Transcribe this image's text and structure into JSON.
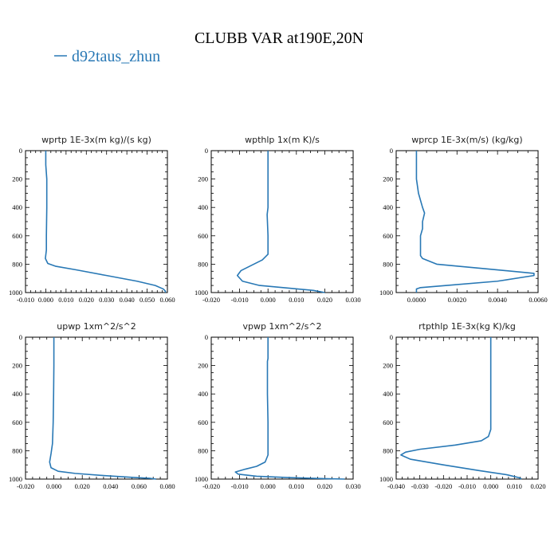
{
  "figure": {
    "title": "CLUBB VAR at190E,20N",
    "legend": {
      "label": "d92taus_zhun",
      "color": "#2878b5"
    }
  },
  "chart_data": [
    {
      "type": "line",
      "title": "wprtp  1E-3x(m kg)/(s kg)",
      "xlim": [
        -0.01,
        0.06
      ],
      "xticks": [
        -0.01,
        0.0,
        0.01,
        0.02,
        0.03,
        0.04,
        0.05,
        0.06
      ],
      "xtick_labels": [
        "-0.010",
        "0.000",
        "0.010",
        "0.020",
        "0.030",
        "0.040",
        "0.050",
        "0.060"
      ],
      "ylim": [
        1000,
        0
      ],
      "yticks": [
        0,
        200,
        400,
        600,
        800,
        1000
      ],
      "series": [
        {
          "color": "#2878b5",
          "x": [
            0.0,
            0.0,
            0.0005,
            0.0005,
            0.0003,
            0.0003,
            -0.0002,
            0.001,
            0.005,
            0.015,
            0.03,
            0.045,
            0.054,
            0.058,
            0.059,
            0.059
          ],
          "y": [
            0,
            100,
            200,
            400,
            600,
            700,
            760,
            795,
            815,
            840,
            880,
            920,
            950,
            975,
            990,
            1000
          ]
        }
      ]
    },
    {
      "type": "line",
      "title": "wpthlp  1x(m K)/s",
      "xlim": [
        -0.02,
        0.03
      ],
      "xticks": [
        -0.02,
        -0.01,
        0.0,
        0.01,
        0.02,
        0.03
      ],
      "xtick_labels": [
        "-0.020",
        "-0.010",
        "0.000",
        "0.010",
        "0.020",
        "0.030"
      ],
      "ylim": [
        1000,
        0
      ],
      "yticks": [
        0,
        200,
        400,
        600,
        800,
        1000
      ],
      "series": [
        {
          "color": "#2878b5",
          "x": [
            0.0,
            0.0,
            0.0,
            -0.0003,
            0.0,
            0.0,
            -0.002,
            -0.006,
            -0.0095,
            -0.0108,
            -0.009,
            -0.003,
            0.008,
            0.016,
            0.02
          ],
          "y": [
            0,
            200,
            400,
            450,
            600,
            730,
            770,
            810,
            845,
            880,
            920,
            950,
            970,
            985,
            1000
          ]
        }
      ]
    },
    {
      "type": "line",
      "title": "wprcp  1E-3x(m/s) (kg/kg)",
      "xlim": [
        -0.001,
        0.006
      ],
      "xticks": [
        0.0,
        0.002,
        0.004,
        0.006
      ],
      "xtick_labels": [
        "0.0000",
        "0.0020",
        "0.0040",
        "0.0060"
      ],
      "ylim": [
        1000,
        0
      ],
      "yticks": [
        0,
        200,
        400,
        600,
        800,
        1000
      ],
      "series": [
        {
          "color": "#2878b5",
          "x": [
            0.0,
            0.0,
            0.0001,
            0.0003,
            0.0004,
            0.0003,
            0.0003,
            0.0002,
            0.0002,
            0.0003,
            0.001,
            0.004,
            0.0058,
            0.0058,
            0.004,
            0.0015,
            0.0002,
            0.0,
            0.0
          ],
          "y": [
            0,
            200,
            300,
            400,
            440,
            500,
            550,
            600,
            740,
            760,
            800,
            840,
            865,
            880,
            920,
            950,
            965,
            975,
            1000
          ]
        }
      ]
    },
    {
      "type": "line",
      "title": "upwp  1xm^2/s^2",
      "xlim": [
        -0.02,
        0.08
      ],
      "xticks": [
        -0.02,
        0.0,
        0.02,
        0.04,
        0.06,
        0.08
      ],
      "xtick_labels": [
        "-0.020",
        "0.000",
        "0.020",
        "0.040",
        "0.060",
        "0.080"
      ],
      "ylim": [
        1000,
        0
      ],
      "yticks": [
        0,
        200,
        400,
        600,
        800,
        1000
      ],
      "series": [
        {
          "color": "#2878b5",
          "x": [
            0.0,
            0.0,
            -0.0002,
            -0.0005,
            -0.001,
            -0.002,
            -0.003,
            -0.002,
            0.003,
            0.015,
            0.035,
            0.055,
            0.068,
            0.072
          ],
          "y": [
            0,
            200,
            400,
            600,
            750,
            820,
            880,
            920,
            945,
            960,
            975,
            988,
            995,
            1000
          ]
        }
      ]
    },
    {
      "type": "line",
      "title": "vpwp  1xm^2/s^2",
      "xlim": [
        -0.02,
        0.03
      ],
      "xticks": [
        -0.02,
        -0.01,
        0.0,
        0.01,
        0.02,
        0.03
      ],
      "xtick_labels": [
        "-0.020",
        "-0.010",
        "0.000",
        "0.010",
        "0.020",
        "0.030"
      ],
      "ylim": [
        1000,
        0
      ],
      "yticks": [
        0,
        200,
        400,
        600,
        800,
        1000
      ],
      "series": [
        {
          "color": "#2878b5",
          "x": [
            0.0,
            0.0,
            -0.0002,
            -0.0002,
            0.0,
            0.0,
            -0.001,
            -0.004,
            -0.008,
            -0.0115,
            -0.0105,
            -0.004,
            0.008,
            0.02,
            0.027
          ],
          "y": [
            0,
            150,
            170,
            400,
            600,
            830,
            880,
            910,
            930,
            950,
            965,
            980,
            990,
            997,
            1000
          ]
        }
      ]
    },
    {
      "type": "line",
      "title": "rtpthlp  1E-3x(kg K)/kg",
      "xlim": [
        -0.04,
        0.02
      ],
      "xticks": [
        -0.04,
        -0.03,
        -0.02,
        -0.01,
        0.0,
        0.01,
        0.02
      ],
      "xtick_labels": [
        "-0.040",
        "-0.030",
        "-0.020",
        "-0.010",
        "0.000",
        "0.010",
        "0.020"
      ],
      "ylim": [
        1000,
        0
      ],
      "yticks": [
        0,
        200,
        400,
        600,
        800,
        1000
      ],
      "series": [
        {
          "color": "#2878b5",
          "x": [
            0.0,
            0.0,
            0.0,
            -0.001,
            -0.004,
            -0.015,
            -0.03,
            -0.036,
            -0.038,
            -0.034,
            -0.02,
            -0.005,
            0.007,
            0.012,
            0.013
          ],
          "y": [
            0,
            400,
            650,
            700,
            730,
            760,
            790,
            810,
            830,
            860,
            900,
            940,
            970,
            990,
            1000
          ]
        }
      ]
    }
  ]
}
